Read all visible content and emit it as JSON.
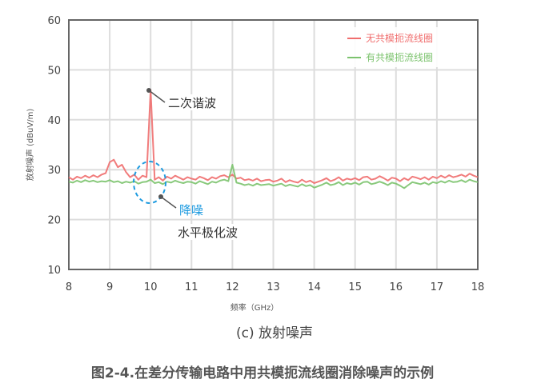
{
  "chart_data": {
    "type": "line",
    "xlabel": "频率（GHz）",
    "ylabel": "放射噪声 (dBuV/m)",
    "xlim": [
      8,
      18
    ],
    "ylim": [
      10,
      60
    ],
    "xticks": [
      "8",
      "9",
      "10",
      "11",
      "12",
      "13",
      "14",
      "15",
      "16",
      "17",
      "18"
    ],
    "yticks": [
      "10",
      "20",
      "30",
      "40",
      "50",
      "60"
    ],
    "grid": true,
    "legend_position": "top-right",
    "x_start": 8.0,
    "x_step": 0.1,
    "series": [
      {
        "name": "无共模扼流线圈",
        "color": "#f06e6e",
        "values": [
          28.5,
          28,
          28.6,
          28.3,
          28.8,
          28.4,
          28.9,
          28.5,
          29,
          29.3,
          31.5,
          32,
          30.5,
          31,
          29.5,
          28.5,
          29,
          28,
          28.8,
          28.5,
          46,
          28,
          28.5,
          27.8,
          28.6,
          28.2,
          28.8,
          28.4,
          28,
          28.5,
          28.2,
          28,
          28.6,
          28.3,
          27.9,
          28.5,
          28.2,
          28.7,
          28.9,
          28.5,
          29,
          28.2,
          28.4,
          27.9,
          28.1,
          27.8,
          28.2,
          27.7,
          27.9,
          28,
          27.6,
          27.8,
          28.2,
          27.5,
          27.9,
          27.6,
          27.4,
          28,
          27.5,
          27.8,
          27.3,
          27.6,
          27.9,
          28.3,
          27.7,
          28,
          28.5,
          27.8,
          28.2,
          28,
          28.3,
          27.9,
          28.5,
          28.6,
          28,
          28.2,
          28.7,
          28.3,
          27.8,
          28.4,
          28.2,
          27.7,
          28.3,
          27.9,
          28.6,
          28.4,
          28.1,
          28.5,
          28,
          28.6,
          28.3,
          28.8,
          28.4,
          28.9,
          28.5,
          28.7,
          29,
          28.6,
          29.2,
          28.8,
          28.5
        ]
      },
      {
        "name": "有共模扼流线圈",
        "color": "#7cc36e",
        "values": [
          27.6,
          27.4,
          27.8,
          27.5,
          27.9,
          27.6,
          27.8,
          27.5,
          27.7,
          27.6,
          27.9,
          27.5,
          27.7,
          27.3,
          27.6,
          27.4,
          27.7,
          27.2,
          27.5,
          27.6,
          28,
          27.3,
          27.5,
          27.1,
          27.6,
          27.4,
          27.8,
          27.5,
          27.3,
          27.6,
          27.5,
          27.2,
          27.7,
          27.4,
          27.1,
          27.6,
          27.4,
          27.8,
          28,
          27.7,
          31,
          27.4,
          27.2,
          26.9,
          27.1,
          26.8,
          27.2,
          26.9,
          27,
          27.1,
          26.8,
          27,
          27.2,
          26.7,
          27,
          26.8,
          26.6,
          27.1,
          26.7,
          26.9,
          26.4,
          26.7,
          27,
          27.4,
          26.9,
          27.1,
          27.5,
          26.9,
          27.3,
          27.1,
          27.4,
          27,
          27.5,
          27.6,
          27.1,
          27.3,
          27.6,
          27.3,
          26.9,
          27.4,
          27.2,
          26.8,
          26.3,
          26.9,
          27.5,
          27.3,
          27.1,
          27.4,
          27,
          27.5,
          27.3,
          27.7,
          27.4,
          27.8,
          27.5,
          27.6,
          27.9,
          27.5,
          28,
          27.7,
          27.5
        ]
      }
    ],
    "annotations": [
      {
        "text": "二次谐波",
        "x": 10,
        "y": 46
      },
      {
        "text": "降噪",
        "color": "#1e9be0",
        "x": 10,
        "y": 27.7
      },
      {
        "text": "水平极化波"
      }
    ]
  },
  "subtitle": "(c) 放射噪声",
  "caption": "图2-4.在差分传输电路中用共模扼流线圈消除噪声的示例"
}
